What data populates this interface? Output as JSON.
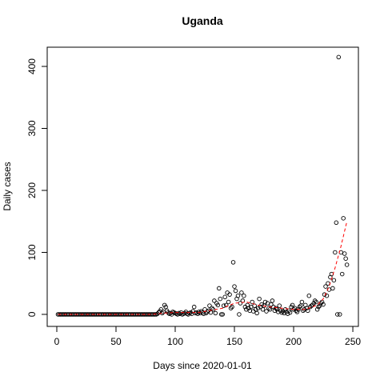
{
  "chart_data": {
    "type": "scatter",
    "title": "Uganda",
    "x_label": "Days since 2020-01-01",
    "y_label": "Daily cases",
    "xlim": [
      -8.1,
      254.7
    ],
    "ylim": [
      -19.4,
      431
    ],
    "xticks": [
      0,
      50,
      100,
      150,
      200,
      250
    ],
    "yticks": [
      0,
      100,
      200,
      300,
      400
    ],
    "series": [
      {
        "color": "#000000",
        "x": [
          1,
          2,
          3,
          4,
          5,
          6,
          7,
          8,
          9,
          10,
          11,
          12,
          13,
          14,
          15,
          16,
          17,
          18,
          19,
          20,
          21,
          22,
          23,
          24,
          25,
          26,
          27,
          28,
          29,
          30,
          31,
          32,
          33,
          34,
          35,
          36,
          37,
          38,
          39,
          40,
          41,
          42,
          43,
          44,
          45,
          46,
          47,
          48,
          49,
          50,
          51,
          52,
          53,
          54,
          55,
          56,
          57,
          58,
          59,
          60,
          61,
          62,
          63,
          64,
          65,
          66,
          67,
          68,
          69,
          70,
          71,
          72,
          73,
          74,
          75,
          76,
          77,
          78,
          79,
          80,
          81,
          82,
          83,
          84,
          85,
          86,
          87,
          88,
          89,
          90,
          91,
          92,
          93,
          94,
          95,
          96,
          97,
          98,
          99,
          100,
          101,
          102,
          103,
          104,
          105,
          106,
          107,
          108,
          109,
          110,
          111,
          112,
          113,
          114,
          115,
          116,
          117,
          118,
          119,
          120,
          121,
          122,
          123,
          124,
          125,
          126,
          127,
          128,
          129,
          130,
          131,
          132,
          133,
          134,
          135,
          136,
          137,
          138,
          139,
          140,
          141,
          142,
          143,
          144,
          145,
          146,
          147,
          148,
          149,
          150,
          151,
          152,
          153,
          154,
          155,
          156,
          157,
          158,
          159,
          160,
          161,
          162,
          163,
          164,
          165,
          166,
          167,
          168,
          169,
          170,
          171,
          172,
          173,
          174,
          175,
          176,
          177,
          178,
          179,
          180,
          181,
          182,
          183,
          184,
          185,
          186,
          187,
          188,
          189,
          190,
          191,
          192,
          193,
          194,
          195,
          196,
          197,
          198,
          199,
          200,
          201,
          202,
          203,
          204,
          205,
          206,
          207,
          208,
          209,
          210,
          211,
          212,
          213,
          214,
          215,
          216,
          217,
          218,
          219,
          220,
          221,
          222,
          223,
          224,
          225,
          226,
          227,
          228,
          229,
          230,
          231,
          232,
          233,
          234,
          235,
          236,
          237,
          238,
          239,
          240,
          241,
          242,
          243,
          244,
          245
        ],
        "values": [
          0,
          0,
          0,
          0,
          0,
          0,
          0,
          0,
          0,
          0,
          0,
          0,
          0,
          0,
          0,
          0,
          0,
          0,
          0,
          0,
          0,
          0,
          0,
          0,
          0,
          0,
          0,
          0,
          0,
          0,
          0,
          0,
          0,
          0,
          0,
          0,
          0,
          0,
          0,
          0,
          0,
          0,
          0,
          0,
          0,
          0,
          0,
          0,
          0,
          0,
          0,
          0,
          0,
          0,
          0,
          0,
          0,
          0,
          0,
          0,
          0,
          0,
          0,
          0,
          0,
          0,
          0,
          0,
          0,
          0,
          0,
          0,
          0,
          0,
          0,
          0,
          0,
          0,
          0,
          0,
          0,
          0,
          0,
          0,
          1,
          3,
          5,
          8,
          2,
          4,
          15,
          12,
          6,
          3,
          1,
          2,
          0,
          4,
          3,
          2,
          1,
          0,
          2,
          1,
          3,
          0,
          1,
          2,
          4,
          1,
          0,
          2,
          3,
          1,
          5,
          12,
          2,
          3,
          1,
          4,
          2,
          5,
          3,
          1,
          8,
          2,
          4,
          6,
          14,
          3,
          10,
          8,
          22,
          2,
          18,
          15,
          42,
          25,
          0,
          0,
          14,
          28,
          15,
          35,
          20,
          32,
          10,
          12,
          84,
          45,
          38,
          25,
          30,
          0,
          18,
          35,
          22,
          30,
          12,
          8,
          15,
          10,
          6,
          12,
          20,
          5,
          14,
          8,
          2,
          10,
          25,
          12,
          16,
          8,
          14,
          20,
          5,
          18,
          10,
          8,
          16,
          22,
          12,
          6,
          10,
          8,
          4,
          14,
          6,
          3,
          5,
          2,
          8,
          4,
          1,
          6,
          3,
          12,
          15,
          8,
          10,
          6,
          4,
          8,
          12,
          14,
          20,
          6,
          8,
          15,
          10,
          6,
          30,
          12,
          14,
          15,
          18,
          22,
          20,
          8,
          12,
          14,
          18,
          20,
          16,
          32,
          45,
          30,
          50,
          40,
          60,
          65,
          42,
          55,
          100,
          148,
          0,
          415,
          0,
          100,
          65,
          155,
          98,
          90,
          80
        ]
      }
    ],
    "trend": {
      "color": "#ff0000",
      "x": [
        1,
        40,
        80,
        90,
        100,
        120,
        140,
        150,
        160,
        170,
        180,
        190,
        200,
        210,
        220,
        225,
        230,
        235,
        240,
        245
      ],
      "values": [
        0,
        0,
        0,
        2,
        3,
        3,
        10,
        18,
        20,
        15,
        12,
        10,
        8,
        8,
        15,
        25,
        45,
        75,
        110,
        150
      ]
    }
  }
}
